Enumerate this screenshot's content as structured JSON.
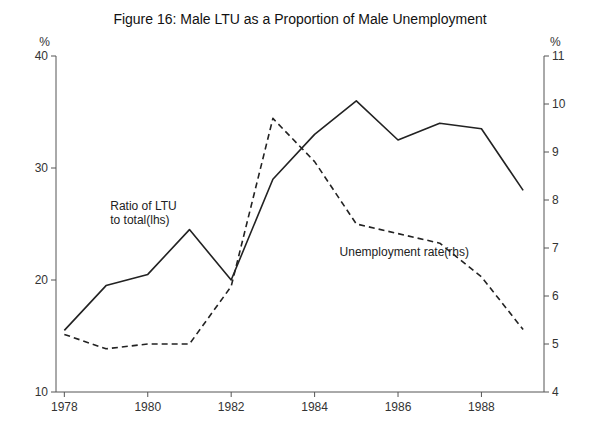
{
  "chart_data": {
    "type": "line",
    "title": "Figure 16: Male LTU as a Proportion of Male Unemployment",
    "x": [
      1978,
      1979,
      1980,
      1981,
      1982,
      1983,
      1984,
      1985,
      1986,
      1987,
      1988,
      1989
    ],
    "xlim": [
      1977.8,
      1989.5
    ],
    "xticks": [
      1978,
      1980,
      1982,
      1984,
      1986,
      1988
    ],
    "ylim": [
      10,
      40
    ],
    "yticks": [
      10,
      20,
      30,
      40
    ],
    "y2lim": [
      4,
      11
    ],
    "y2ticks": [
      4,
      5,
      6,
      7,
      8,
      9,
      10,
      11
    ],
    "y_label": "%",
    "y2_label": "%",
    "series": [
      {
        "values": [
          15.5,
          19.5,
          20.5,
          24.5,
          20.0,
          29.0,
          33.0,
          36.0,
          32.5,
          34.0,
          33.5,
          28.0
        ],
        "color": "#222222",
        "line_style": "solid"
      },
      {
        "values": [
          5.2,
          4.9,
          5.0,
          5.0,
          6.2,
          9.7,
          8.8,
          7.5,
          7.3,
          7.1,
          6.4,
          5.3
        ],
        "color": "#222222",
        "line_style": "dashed",
        "axis": "y2"
      }
    ],
    "annotations": [
      {
        "text": "Ratio of LTU\nto total(lhs)",
        "x": 1979.1,
        "y": 26.0,
        "color": "#222222"
      },
      {
        "text": "Unemployment rate(rhs)",
        "x": 1984.6,
        "y": 22.5,
        "color": "#222222"
      }
    ]
  }
}
